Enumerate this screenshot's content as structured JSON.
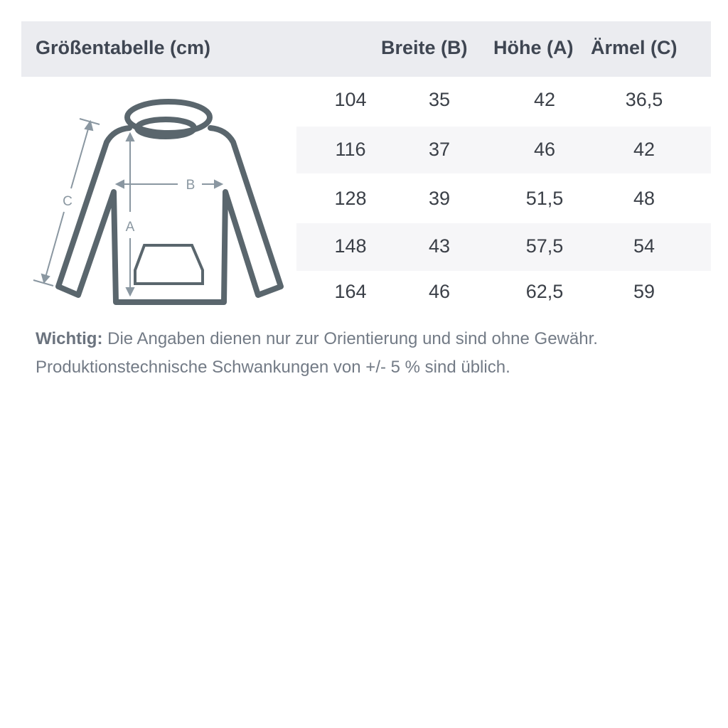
{
  "header": {
    "title": "Größentabelle (cm)",
    "columns": [
      "Breite (B)",
      "Höhe (A)",
      "Ärmel (C)"
    ]
  },
  "diagram": {
    "icon": "hoodie-icon",
    "labels": {
      "a": "A",
      "b": "B",
      "c": "C"
    },
    "color": "#5a666d",
    "arrow_color": "#8a97a1"
  },
  "table": {
    "rows": [
      [
        "104",
        "35",
        "42",
        "36,5"
      ],
      [
        "116",
        "37",
        "46",
        "42"
      ],
      [
        "128",
        "39",
        "51,5",
        "48"
      ],
      [
        "148",
        "43",
        "57,5",
        "54"
      ],
      [
        "164",
        "46",
        "62,5",
        "59"
      ]
    ]
  },
  "note": {
    "bold": "Wichtig:",
    "line1": " Die Angaben dienen nur zur Orientierung und sind ohne Gewähr.",
    "line2": "Produktionstechnische Schwankungen von +/- 5 % sind üblich."
  },
  "colors": {
    "header_bg": "#ebecf0",
    "stripe": "#f6f6f8",
    "text": "#3f4652"
  }
}
